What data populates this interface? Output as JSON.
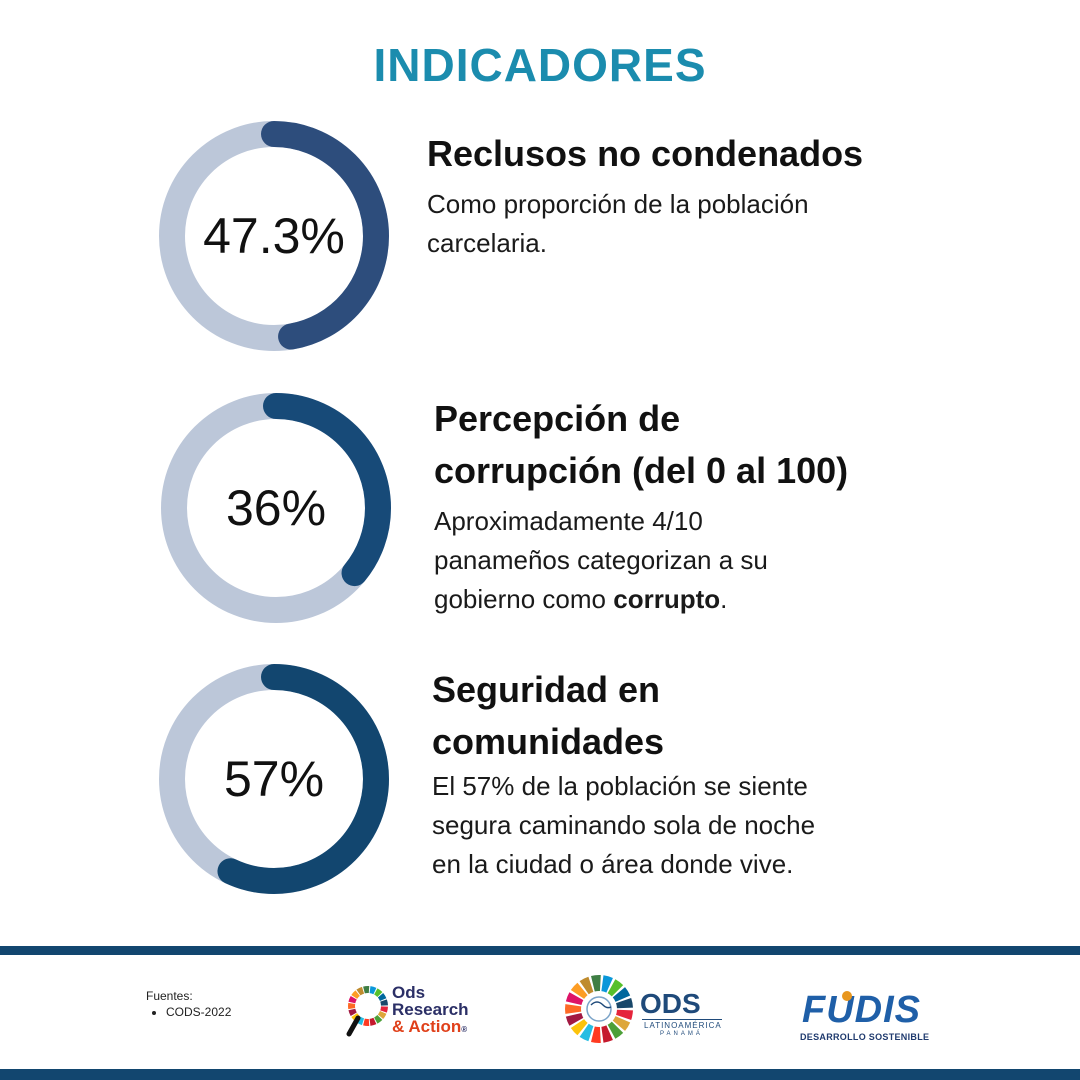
{
  "page_title": "INDICADORES",
  "colors": {
    "title": "#1b8cae",
    "ring_track": "#bcc7d9",
    "ring_1": "#2d4d7c",
    "ring_2": "#174a78",
    "ring_3": "#12466f",
    "band": "#12466f"
  },
  "chart_data": [
    {
      "type": "pie",
      "value_label": "47.3%",
      "values": [
        47.3,
        52.7
      ],
      "title": "Reclusos no condenados",
      "description": "Como proporción de la población carcelaria."
    },
    {
      "type": "pie",
      "value_label": "36%",
      "values": [
        36,
        64
      ],
      "title": "Percepción de corrupción (del 0 al 100)",
      "description_parts": [
        "Aproximadamente 4/10 panameños categorizan a su gobierno como ",
        "corrupto",
        "."
      ]
    },
    {
      "type": "pie",
      "value_label": "57%",
      "values": [
        57,
        43
      ],
      "title": "Seguridad en comunidades",
      "description": "El 57% de la población se siente segura caminando sola de noche en la ciudad o área donde vive."
    }
  ],
  "indicators": [
    {
      "title_lines": [
        "Reclusos no condenados"
      ],
      "desc_lines": [
        "Como proporción de la población",
        "carcelaria."
      ]
    },
    {
      "title_lines": [
        "Percepción de",
        "corrupción (del 0 al 100)"
      ],
      "desc_lines": [
        "Aproximadamente 4/10",
        "panameños categorizan a su"
      ],
      "desc_last_pre": "gobierno como ",
      "desc_last_bold": "corrupto",
      "desc_last_post": "."
    },
    {
      "title_lines": [
        "Seguridad en",
        "comunidades"
      ],
      "desc_lines": [
        "El 57% de la población se siente",
        "segura caminando sola de noche",
        "en la ciudad o área donde vive."
      ]
    }
  ],
  "footer": {
    "sources_label": "Fuentes:",
    "sources": [
      "CODS-2022"
    ],
    "logo1": {
      "line1": "Ods",
      "line2": "Research",
      "line3": "& Action",
      "mark": "®"
    },
    "logo2": {
      "main": "ODS",
      "sub1": "LATINOAMÉRICA",
      "sub2": "PANAMÁ"
    },
    "logo3": {
      "main": "FUDIS",
      "sub": "DESARROLLO SOSTENIBLE"
    }
  }
}
